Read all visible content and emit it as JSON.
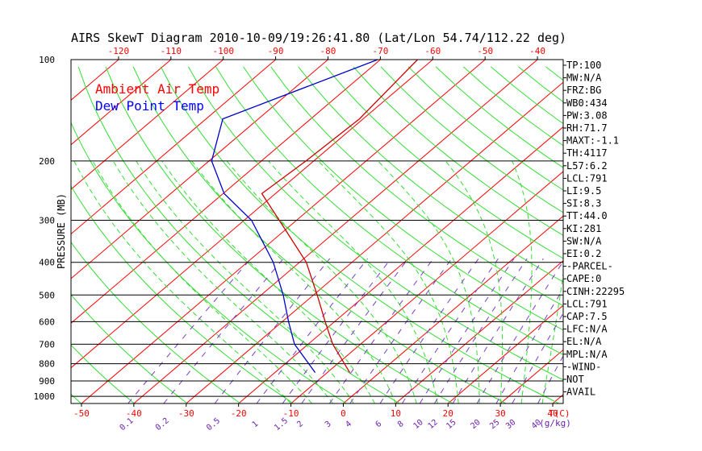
{
  "chart_data": {
    "type": "line",
    "title": "AIRS SkewT Diagram 2010-10-09/19:26:41.80 (Lat/Lon 54.74/112.22 deg)",
    "ylabel": "PRESSURE (MB)",
    "xlabel": "T(C)",
    "mixing_ratio_label": "(g/kg)",
    "ylim": [
      1050,
      100
    ],
    "xlim_bottom": [
      -52,
      42
    ],
    "pressure_ticks": [
      100,
      200,
      300,
      400,
      500,
      600,
      700,
      800,
      900,
      1000
    ],
    "bottom_temp_ticks": [
      -50,
      -40,
      -30,
      -20,
      -10,
      0,
      10,
      20,
      30,
      40
    ],
    "top_temp_ticks": [
      -120,
      -110,
      -100,
      -90,
      -80,
      -70,
      -60,
      -50,
      -40
    ],
    "mixing_ratio_ticks": [
      "0.1",
      "0.2",
      "0.5",
      "1",
      "1.5",
      "2",
      "3",
      "4",
      "6",
      "8",
      "10",
      "12",
      "15",
      "20",
      "25",
      "30",
      "40"
    ],
    "legend": [
      {
        "name": "Ambient Air Temp",
        "color": "#ff0000"
      },
      {
        "name": "Dew Point Temp",
        "color": "#0000ff"
      }
    ],
    "series": [
      {
        "name": "Ambient Air Temp",
        "color": "#cc0000",
        "points": [
          {
            "p": 100,
            "t": -62.9
          },
          {
            "p": 150,
            "t": -60.7
          },
          {
            "p": 200,
            "t": -61.5
          },
          {
            "p": 250,
            "t": -62.6
          },
          {
            "p": 300,
            "t": -53.3
          },
          {
            "p": 400,
            "t": -38.7
          },
          {
            "p": 500,
            "t": -29.3
          },
          {
            "p": 600,
            "t": -21.8
          },
          {
            "p": 700,
            "t": -15.3
          },
          {
            "p": 850,
            "t": -5.7
          }
        ]
      },
      {
        "name": "Dew Point Temp",
        "color": "#0000cc",
        "points": [
          {
            "p": 100,
            "t": -70.5
          },
          {
            "p": 150,
            "t": -86.8
          },
          {
            "p": 200,
            "t": -79.5
          },
          {
            "p": 250,
            "t": -69.8
          },
          {
            "p": 300,
            "t": -58.6
          },
          {
            "p": 400,
            "t": -45.0
          },
          {
            "p": 500,
            "t": -35.8
          },
          {
            "p": 600,
            "t": -28.8
          },
          {
            "p": 700,
            "t": -22.6
          },
          {
            "p": 850,
            "t": -12.3
          }
        ]
      }
    ],
    "stats": [
      "TP:100",
      "MW:N/A",
      "FRZ:BG",
      "WB0:434",
      "PW:3.08",
      "RH:71.7",
      "MAXT:-1.1",
      "TH:4117",
      "L57:6.2",
      "LCL:791",
      "LI:9.5",
      "SI:8.3",
      "TT:44.0",
      "KI:281",
      "SW:N/A",
      "EI:0.2",
      "-PARCEL-",
      "CAPE:0",
      "CINH:22295",
      "LCL:791",
      "CAP:7.5",
      "LFC:N/A",
      "EL:N/A",
      "MPL:N/A",
      "-WIND-",
      "NOT",
      "AVAIL"
    ]
  }
}
